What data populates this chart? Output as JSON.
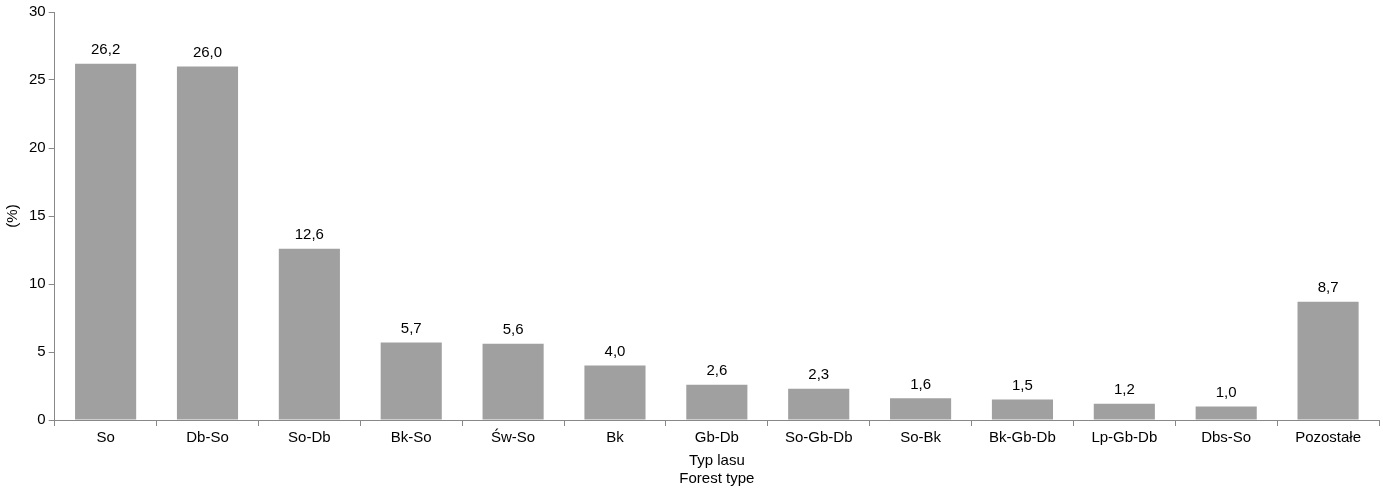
{
  "chart_data": {
    "type": "bar",
    "xlabel": "Typ lasu\nForest type",
    "ylabel": "(%)",
    "categories": [
      "So",
      "Db-So",
      "So-Db",
      "Bk-So",
      "Św-So",
      "Bk",
      "Gb-Db",
      "So-Gb-Db",
      "So-Bk",
      "Bk-Gb-Db",
      "Lp-Gb-Db",
      "Dbs-So",
      "Pozostałe"
    ],
    "values": [
      26.2,
      26.0,
      12.6,
      5.7,
      5.6,
      4.0,
      2.6,
      2.3,
      1.6,
      1.5,
      1.2,
      1.0,
      8.7
    ],
    "value_labels": [
      "26,2",
      "26,0",
      "12,6",
      "5,7",
      "5,6",
      "4,0",
      "2,6",
      "2,3",
      "1,6",
      "1,5",
      "1,2",
      "1,0",
      "8,7"
    ],
    "color": "#a0a0a0",
    "ylim": [
      0,
      30
    ],
    "yticks": [
      0,
      5,
      10,
      15,
      20,
      25,
      30
    ],
    "grid": false,
    "legend": false
  }
}
